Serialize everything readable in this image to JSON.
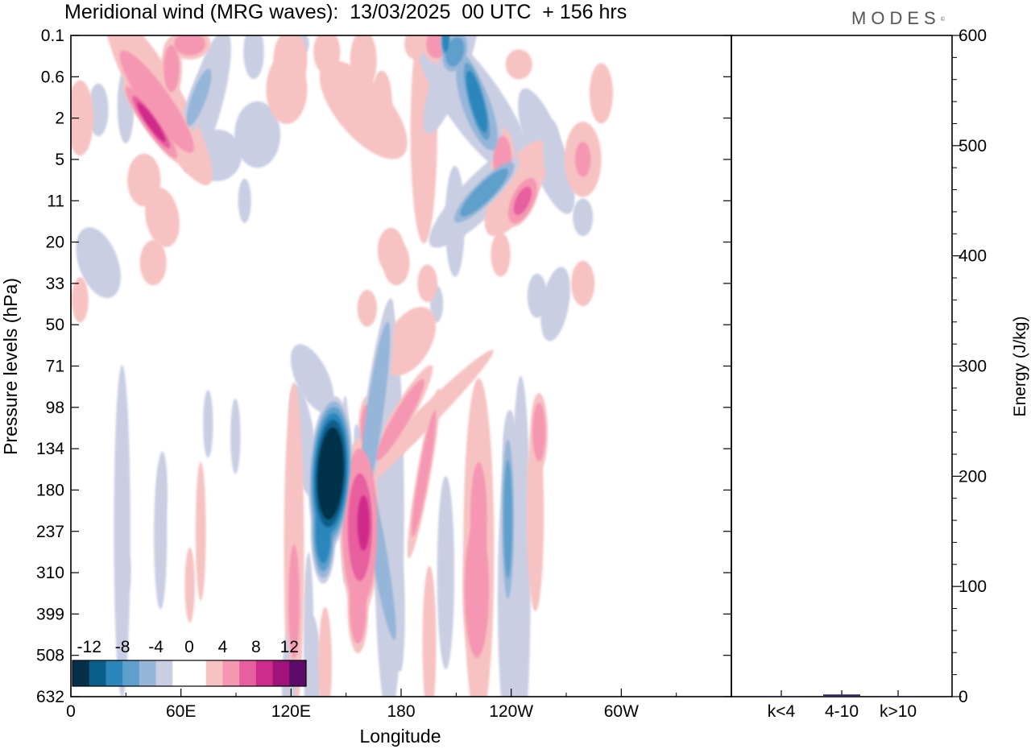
{
  "header": {
    "title": "Meridional wind (MRG waves):  13/03/2025  00 UTC  + 156 hrs",
    "brand": "MODES",
    "brand_mark": "©"
  },
  "chart_data": [
    {
      "type": "heatmap",
      "title": "Meridional wind (MRG waves):  13/03/2025  00 UTC  + 156 hrs",
      "xlabel": "Longitude",
      "ylabel": "Pressure levels (hPa)",
      "x_ticks": [
        "0",
        "60E",
        "120E",
        "180",
        "120W",
        "60W"
      ],
      "y_ticks": [
        "0.1",
        "0.6",
        "2",
        "5",
        "11",
        "20",
        "33",
        "50",
        "71",
        "98",
        "134",
        "180",
        "237",
        "310",
        "399",
        "508",
        "632"
      ],
      "colorbar": {
        "labels": [
          "-12",
          "-8",
          "-4",
          "0",
          "4",
          "8",
          "12"
        ],
        "levels": [
          -14,
          -12,
          -10,
          -8,
          -6,
          -4,
          -2,
          2,
          4,
          6,
          8,
          10,
          12,
          14
        ],
        "colors": [
          "#06304a",
          "#0a5f8a",
          "#2a86bb",
          "#5f9fcb",
          "#95b6d8",
          "#c9cee3",
          "#ffffff",
          "#ffffff",
          "#f7c2c2",
          "#f597b2",
          "#e85f9f",
          "#cf2b8a",
          "#a0137a",
          "#5e0a6a"
        ]
      },
      "features": [
        {
          "lon": 142,
          "level": 10.6,
          "value": -16,
          "rx": 12,
          "ry": 1.9,
          "angle": 3
        },
        {
          "lon": 138,
          "level": 12,
          "value": -10,
          "rx": 7,
          "ry": 1.3,
          "angle": 0
        },
        {
          "lon": 158,
          "level": 11.9,
          "value": 10,
          "rx": 11,
          "ry": 2.2,
          "angle": 0
        },
        {
          "lon": 160,
          "level": 11.8,
          "value": 11,
          "rx": 7,
          "ry": 1.4,
          "angle": 0
        },
        {
          "lon": 157,
          "level": 13.8,
          "value": 6,
          "rx": 6,
          "ry": 1.2,
          "angle": 0
        },
        {
          "lon": 162,
          "level": 9.5,
          "value": 5,
          "rx": 5,
          "ry": 0.8,
          "angle": 0
        },
        {
          "lon": 166,
          "level": 9.2,
          "value": -6,
          "rx": 6,
          "ry": 3.0,
          "angle": 8
        },
        {
          "lon": 168,
          "level": 12.4,
          "value": -5,
          "rx": 6,
          "ry": 3.2,
          "angle": -10
        },
        {
          "lon": 174,
          "level": 11.5,
          "value": -3,
          "rx": 9,
          "ry": 5.5,
          "angle": 0
        },
        {
          "lon": 180,
          "level": 9.3,
          "value": 5,
          "rx": 6,
          "ry": 1.6,
          "angle": 30
        },
        {
          "lon": 186,
          "level": 9.6,
          "value": 4,
          "rx": 6,
          "ry": 3.0,
          "angle": 45
        },
        {
          "lon": 193,
          "level": 10.6,
          "value": 5,
          "rx": 4,
          "ry": 2.2,
          "angle": 10
        },
        {
          "lon": 196,
          "level": 14.7,
          "value": 4,
          "rx": 4,
          "ry": 2.0,
          "angle": 0
        },
        {
          "lon": 185,
          "level": 7.4,
          "value": 3,
          "rx": 13,
          "ry": 1.0,
          "angle": 30
        },
        {
          "lon": 127,
          "level": 9.8,
          "value": -3,
          "rx": 7,
          "ry": 1.5,
          "angle": -8
        },
        {
          "lon": 132,
          "level": 8.3,
          "value": -2.5,
          "rx": 10,
          "ry": 1.0,
          "angle": -25
        },
        {
          "lon": 122,
          "level": 13.7,
          "value": 6,
          "rx": 4,
          "ry": 1.8,
          "angle": 0
        },
        {
          "lon": 122,
          "level": 12.5,
          "value": 3,
          "rx": 6,
          "ry": 4.5,
          "angle": 0
        },
        {
          "lon": 119,
          "level": 15.8,
          "value": -3,
          "rx": 4,
          "ry": 1.5,
          "angle": 0
        },
        {
          "lon": 132,
          "level": 15.5,
          "value": -3,
          "rx": 5,
          "ry": 1.6,
          "angle": 0
        },
        {
          "lon": 139,
          "level": 15.2,
          "value": 3,
          "rx": 4,
          "ry": 1.5,
          "angle": 0
        },
        {
          "lon": 205,
          "level": 13.0,
          "value": -4,
          "rx": 5,
          "ry": 2.5,
          "angle": 0
        },
        {
          "lon": 222,
          "level": 13.4,
          "value": 8,
          "rx": 8,
          "ry": 2.0,
          "angle": 0
        },
        {
          "lon": 223,
          "level": 11.7,
          "value": 6,
          "rx": 6,
          "ry": 1.8,
          "angle": 0
        },
        {
          "lon": 223,
          "level": 12.5,
          "value": 4,
          "rx": 9,
          "ry": 4.5,
          "angle": 0
        },
        {
          "lon": 239,
          "level": 11.7,
          "value": -7,
          "rx": 4,
          "ry": 2.4,
          "angle": 0
        },
        {
          "lon": 239,
          "level": 13.6,
          "value": -4,
          "rx": 6,
          "ry": 3.5,
          "angle": 0
        },
        {
          "lon": 240,
          "level": 10.0,
          "value": -4,
          "rx": 4,
          "ry": 1.0,
          "angle": 0
        },
        {
          "lon": 246,
          "level": 12.8,
          "value": -3,
          "rx": 6,
          "ry": 5.0,
          "angle": 0
        },
        {
          "lon": 256,
          "level": 9.6,
          "value": 5,
          "rx": 5,
          "ry": 1.0,
          "angle": 0
        },
        {
          "lon": 254,
          "level": 11.6,
          "value": 4,
          "rx": 5,
          "ry": 2.5,
          "angle": 0
        },
        {
          "lon": 30,
          "level": 13.0,
          "value": -4,
          "rx": 3,
          "ry": 0.6,
          "angle": 0
        },
        {
          "lon": 28,
          "level": 12.0,
          "value": -2.5,
          "rx": 5,
          "ry": 4.5,
          "angle": 0
        },
        {
          "lon": 50,
          "level": 11.0,
          "value": -4,
          "rx": 3,
          "ry": 1.0,
          "angle": 0
        },
        {
          "lon": 49,
          "level": 12.1,
          "value": -2.5,
          "rx": 4,
          "ry": 2.0,
          "angle": 0
        },
        {
          "lon": 71,
          "level": 12.0,
          "value": 4,
          "rx": 3,
          "ry": 1.8,
          "angle": 0
        },
        {
          "lon": 75,
          "level": 9.4,
          "value": -3,
          "rx": 3,
          "ry": 0.9,
          "angle": 0
        },
        {
          "lon": 65,
          "level": 13.3,
          "value": 3,
          "rx": 3,
          "ry": 1.0,
          "angle": 0
        },
        {
          "lon": 90,
          "level": 9.7,
          "value": -3,
          "rx": 3,
          "ry": 1.0,
          "angle": 0
        },
        {
          "lon": 130,
          "level": 14.3,
          "value": -2.5,
          "rx": 3,
          "ry": 2.0,
          "angle": 0
        },
        {
          "lon": 150,
          "level": 11.0,
          "value": -3,
          "rx": 3,
          "ry": 2.5,
          "angle": 0
        },
        {
          "lon": 180,
          "level": 14.0,
          "value": -3,
          "rx": 3,
          "ry": 1.5,
          "angle": 0
        },
        {
          "lon": 44,
          "level": 2.1,
          "value": 11,
          "rx": 5,
          "ry": 1.2,
          "angle": -35
        },
        {
          "lon": 47,
          "level": 1.6,
          "value": 8,
          "rx": 9,
          "ry": 1.8,
          "angle": -35
        },
        {
          "lon": 48,
          "level": 1.5,
          "value": 4,
          "rx": 13,
          "ry": 2.6,
          "angle": -30
        },
        {
          "lon": 55,
          "level": 0.8,
          "value": 5,
          "rx": 6,
          "ry": 0.8,
          "angle": 0
        },
        {
          "lon": 15,
          "level": 1.8,
          "value": -3,
          "rx": 6,
          "ry": 0.7,
          "angle": 0
        },
        {
          "lon": 30,
          "level": 1.7,
          "value": -3,
          "rx": 5,
          "ry": 1.0,
          "angle": 0
        },
        {
          "lon": 70,
          "level": 1.5,
          "value": -4.5,
          "rx": 6,
          "ry": 1.1,
          "angle": 20
        },
        {
          "lon": 74,
          "level": 1.6,
          "value": -2.5,
          "rx": 10,
          "ry": 2.0,
          "angle": 15
        },
        {
          "lon": 65,
          "level": 0.2,
          "value": 5,
          "rx": 12,
          "ry": 0.4,
          "angle": 0
        },
        {
          "lon": 100,
          "level": 0.4,
          "value": -4,
          "rx": 6,
          "ry": 0.7,
          "angle": 0
        },
        {
          "lon": 80,
          "level": 2.9,
          "value": -2.5,
          "rx": 15,
          "ry": 0.7,
          "angle": 0
        },
        {
          "lon": 102,
          "level": 2.4,
          "value": -2.5,
          "rx": 14,
          "ry": 0.9,
          "angle": 0
        },
        {
          "lon": 118,
          "level": 1.3,
          "value": 4,
          "rx": 12,
          "ry": 0.9,
          "angle": 0
        },
        {
          "lon": 120,
          "level": 0.6,
          "value": 3.5,
          "rx": 10,
          "ry": 0.8,
          "angle": 0
        },
        {
          "lon": 160,
          "level": 1.8,
          "value": 3,
          "rx": 16,
          "ry": 1.6,
          "angle": -40
        },
        {
          "lon": 170,
          "level": 1.6,
          "value": 4,
          "rx": 6,
          "ry": 0.8,
          "angle": 0
        },
        {
          "lon": 193,
          "level": 2.3,
          "value": 3,
          "rx": 8,
          "ry": 3.0,
          "angle": 0
        },
        {
          "lon": 140,
          "level": 0.4,
          "value": 3,
          "rx": 8,
          "ry": 0.6,
          "angle": 0
        },
        {
          "lon": 160,
          "level": 0.6,
          "value": 3,
          "rx": 8,
          "ry": 0.8,
          "angle": 0
        },
        {
          "lon": 123,
          "level": 0.2,
          "value": -3,
          "rx": 8,
          "ry": 0.4,
          "angle": 0
        },
        {
          "lon": 200,
          "level": 0.2,
          "value": 5,
          "rx": 8,
          "ry": 0.5,
          "angle": 0
        },
        {
          "lon": 188,
          "level": 0.2,
          "value": 4,
          "rx": 6,
          "ry": 0.4,
          "angle": 0
        },
        {
          "lon": 245,
          "level": 0.7,
          "value": 3,
          "rx": 8,
          "ry": 0.4,
          "angle": 0
        },
        {
          "lon": 205,
          "level": 0.1,
          "value": -10,
          "rx": 3,
          "ry": 0.5,
          "angle": 0
        },
        {
          "lon": 210,
          "level": 0.4,
          "value": -7,
          "rx": 8,
          "ry": 0.6,
          "angle": 15
        },
        {
          "lon": 208,
          "level": 0.8,
          "value": -4,
          "rx": 9,
          "ry": 1.8,
          "angle": 20
        },
        {
          "lon": 222,
          "level": 1.6,
          "value": -10,
          "rx": 6,
          "ry": 1.3,
          "angle": -15
        },
        {
          "lon": 222,
          "level": 1.7,
          "value": -6,
          "rx": 10,
          "ry": 1.5,
          "angle": -20
        },
        {
          "lon": 220,
          "level": 1.6,
          "value": -3,
          "rx": 17,
          "ry": 2.5,
          "angle": -35
        },
        {
          "lon": 226,
          "level": 3.8,
          "value": -8,
          "rx": 7,
          "ry": 1.2,
          "angle": 45
        },
        {
          "lon": 226,
          "level": 3.8,
          "value": -3,
          "rx": 12,
          "ry": 2.0,
          "angle": 45
        },
        {
          "lon": 247,
          "level": 4.0,
          "value": 9,
          "rx": 7,
          "ry": 0.7,
          "angle": 25
        },
        {
          "lon": 244,
          "level": 3.7,
          "value": 4,
          "rx": 12,
          "ry": 1.4,
          "angle": 30
        },
        {
          "lon": 236,
          "level": 3.0,
          "value": 5,
          "rx": 7,
          "ry": 0.8,
          "angle": 0
        },
        {
          "lon": 263,
          "level": 2.8,
          "value": -4,
          "rx": 5,
          "ry": 0.8,
          "angle": 0
        },
        {
          "lon": 260,
          "level": 2.8,
          "value": -2.5,
          "rx": 11,
          "ry": 1.8,
          "angle": -20
        },
        {
          "lon": 280,
          "level": 3.0,
          "value": 5,
          "rx": 6,
          "ry": 0.6,
          "angle": 0
        },
        {
          "lon": 280,
          "level": 3.0,
          "value": 3,
          "rx": 11,
          "ry": 1.0,
          "angle": 0
        },
        {
          "lon": 290,
          "level": 1.4,
          "value": 3,
          "rx": 7,
          "ry": 0.8,
          "angle": 0
        },
        {
          "lon": 280,
          "level": 4.4,
          "value": -3,
          "rx": 6,
          "ry": 0.5,
          "angle": 0
        },
        {
          "lon": 210,
          "level": 4.5,
          "value": -2.5,
          "rx": 6,
          "ry": 1.5,
          "angle": 0
        },
        {
          "lon": 175,
          "level": 5.2,
          "value": 3,
          "rx": 8,
          "ry": 0.6,
          "angle": 0
        },
        {
          "lon": 178,
          "level": 5.5,
          "value": 3,
          "rx": 8,
          "ry": 0.6,
          "angle": 0
        },
        {
          "lon": 195,
          "level": 6.0,
          "value": 3,
          "rx": 6,
          "ry": 0.5,
          "angle": 0
        },
        {
          "lon": 40,
          "level": 3.5,
          "value": 3,
          "rx": 10,
          "ry": 0.7,
          "angle": 0
        },
        {
          "lon": 50,
          "level": 4.4,
          "value": 3,
          "rx": 10,
          "ry": 0.8,
          "angle": -10
        },
        {
          "lon": 5,
          "level": 2.0,
          "value": 3,
          "rx": 8,
          "ry": 1.0,
          "angle": 0
        },
        {
          "lon": 15,
          "level": 5.5,
          "value": -3,
          "rx": 5,
          "ry": 0.8,
          "angle": -20
        },
        {
          "lon": 15,
          "level": 5.5,
          "value": -2.5,
          "rx": 12,
          "ry": 1.0,
          "angle": -20
        },
        {
          "lon": 45,
          "level": 5.5,
          "value": 3,
          "rx": 8,
          "ry": 0.6,
          "angle": 0
        },
        {
          "lon": 5,
          "level": 6.4,
          "value": 3,
          "rx": 5,
          "ry": 0.6,
          "angle": 0
        },
        {
          "lon": 95,
          "level": 4.0,
          "value": -2.5,
          "rx": 4,
          "ry": 0.6,
          "angle": 0
        },
        {
          "lon": 235,
          "level": 5.3,
          "value": 2.5,
          "rx": 6,
          "ry": 0.6,
          "angle": 0
        },
        {
          "lon": 255,
          "level": 6.3,
          "value": -2.5,
          "rx": 6,
          "ry": 0.6,
          "angle": 0
        },
        {
          "lon": 265,
          "level": 6.5,
          "value": -3,
          "rx": 8,
          "ry": 1.0,
          "angle": 10
        },
        {
          "lon": 280,
          "level": 6.0,
          "value": 3,
          "rx": 7,
          "ry": 0.6,
          "angle": 0
        },
        {
          "lon": 200,
          "level": 6.5,
          "value": -2.5,
          "rx": 4,
          "ry": 0.5,
          "angle": 0
        },
        {
          "lon": 162,
          "level": 6.6,
          "value": 2.5,
          "rx": 6,
          "ry": 0.5,
          "angle": 0
        }
      ]
    },
    {
      "type": "bar",
      "categories": [
        "k<4",
        "4-10",
        "k>10"
      ],
      "values": [
        0,
        2,
        0
      ],
      "ylabel": "Energy (J/kg)",
      "ylim": [
        0,
        600
      ],
      "y_ticks": [
        "0",
        "100",
        "200",
        "300",
        "400",
        "500",
        "600"
      ],
      "color": "#2a2a60"
    }
  ]
}
